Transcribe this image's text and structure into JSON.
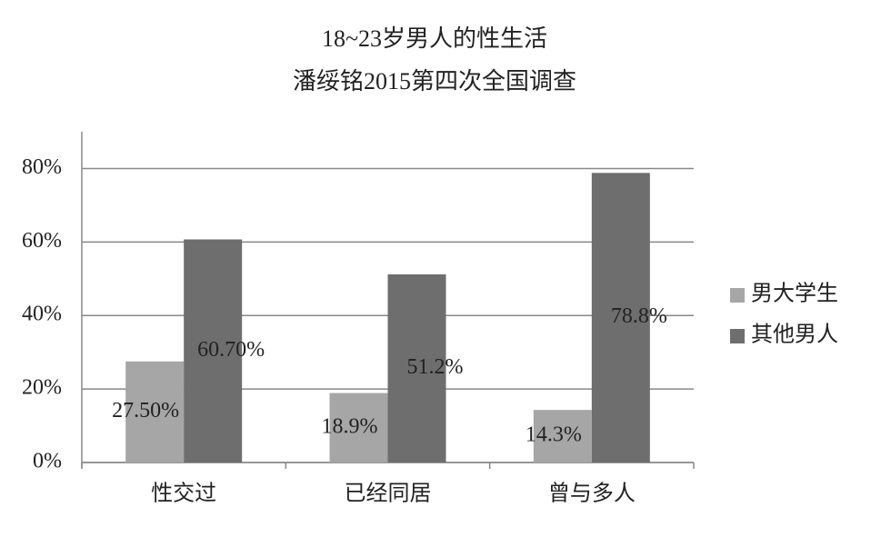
{
  "chart_data": {
    "type": "bar",
    "title": "18~23岁男人的性生活",
    "subtitle": "潘绥铭2015第四次全国调查",
    "categories": [
      "性交过",
      "已经同居",
      "曾与多人"
    ],
    "series": [
      {
        "name": "男大学生",
        "color": "#a6a6a6",
        "values": [
          27.5,
          18.9,
          14.3
        ],
        "value_labels": [
          "27.50%",
          "18.9%",
          "14.3%"
        ]
      },
      {
        "name": "其他男人",
        "color": "#6e6e6e",
        "values": [
          60.7,
          51.2,
          78.8
        ],
        "value_labels": [
          "60.70%",
          "51.2%",
          "78.8%"
        ]
      }
    ],
    "ylim": [
      0,
      90
    ],
    "yticks": [
      {
        "value": 0,
        "label": "0%"
      },
      {
        "value": 20,
        "label": "20%"
      },
      {
        "value": 40,
        "label": "40%"
      },
      {
        "value": 60,
        "label": "60%"
      },
      {
        "value": 80,
        "label": "80%"
      }
    ],
    "grid": true,
    "legend": "right"
  }
}
